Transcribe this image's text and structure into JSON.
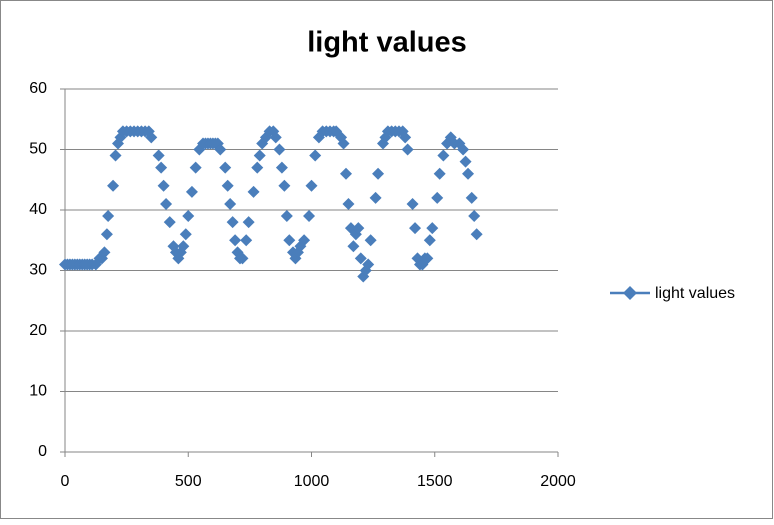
{
  "chart_data": {
    "type": "scatter",
    "title": "light values",
    "x": [
      0,
      10,
      20,
      30,
      40,
      50,
      60,
      70,
      80,
      90,
      100,
      110,
      125,
      140,
      150,
      160,
      170,
      175,
      195,
      205,
      215,
      225,
      235,
      250,
      265,
      280,
      295,
      310,
      325,
      340,
      350,
      380,
      390,
      400,
      410,
      425,
      440,
      450,
      460,
      470,
      480,
      490,
      500,
      515,
      530,
      545,
      560,
      570,
      580,
      590,
      600,
      610,
      620,
      630,
      650,
      660,
      670,
      680,
      690,
      700,
      710,
      720,
      735,
      745,
      765,
      780,
      790,
      800,
      815,
      830,
      845,
      855,
      870,
      880,
      890,
      900,
      910,
      925,
      935,
      945,
      955,
      970,
      990,
      1000,
      1015,
      1030,
      1045,
      1060,
      1075,
      1090,
      1100,
      1120,
      1130,
      1140,
      1150,
      1160,
      1170,
      1180,
      1190,
      1200,
      1210,
      1220,
      1230,
      1240,
      1260,
      1270,
      1290,
      1300,
      1310,
      1325,
      1340,
      1355,
      1370,
      1380,
      1390,
      1410,
      1420,
      1430,
      1440,
      1450,
      1460,
      1470,
      1480,
      1490,
      1510,
      1520,
      1535,
      1550,
      1565,
      1580,
      1600,
      1615,
      1625,
      1635,
      1650,
      1660,
      1670
    ],
    "series": [
      {
        "name": "light values",
        "color": "#4a7ebb",
        "values": [
          31,
          31,
          31,
          31,
          31,
          31,
          31,
          31,
          31,
          31,
          31,
          31,
          31,
          32,
          32,
          33,
          36,
          39,
          44,
          49,
          51,
          52,
          53,
          53,
          53,
          53,
          53,
          53,
          53,
          53,
          52,
          49,
          47,
          44,
          41,
          38,
          34,
          33,
          32,
          33,
          34,
          36,
          39,
          43,
          47,
          50,
          51,
          51,
          51,
          51,
          51,
          51,
          51,
          50,
          47,
          44,
          41,
          38,
          35,
          33,
          32,
          32,
          35,
          38,
          43,
          47,
          49,
          51,
          52,
          53,
          53,
          52,
          50,
          47,
          44,
          39,
          35,
          33,
          32,
          33,
          34,
          35,
          39,
          44,
          49,
          52,
          53,
          53,
          53,
          53,
          53,
          52,
          51,
          46,
          41,
          37,
          34,
          36,
          37,
          32,
          29,
          30,
          31,
          35,
          42,
          46,
          51,
          52,
          53,
          53,
          53,
          53,
          53,
          52,
          50,
          41,
          37,
          32,
          31,
          31,
          32,
          32,
          35,
          37,
          42,
          46,
          49,
          51,
          52,
          51,
          51,
          50,
          48,
          46,
          42,
          39,
          36
        ]
      }
    ],
    "xlim": [
      0,
      2000
    ],
    "xticks": [
      0,
      500,
      1000,
      1500,
      2000
    ],
    "ylim": [
      0,
      60
    ],
    "yticks": [
      0,
      10,
      20,
      30,
      40,
      50,
      60
    ],
    "grid": true,
    "legend": "right"
  }
}
